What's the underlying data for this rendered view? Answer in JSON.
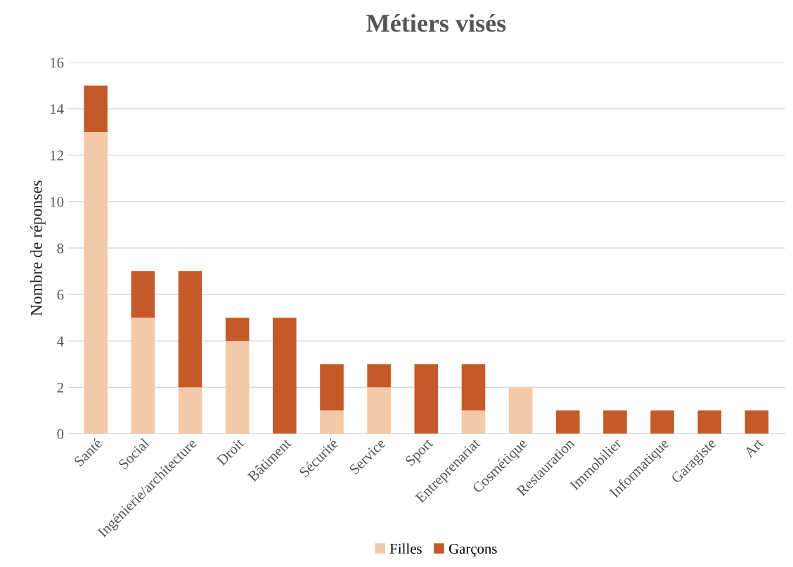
{
  "chart_data": {
    "type": "bar",
    "title": "Métiers visés",
    "ylabel": "Nombre de réponses",
    "categories": [
      "Santé",
      "Social",
      "Ingénierie/architecture",
      "Droit",
      "Bâtiment",
      "Sécurité",
      "Service",
      "Sport",
      "Entreprenariat",
      "Cosmétique",
      "Restauration",
      "Immobilier",
      "Informatique",
      "Garagiste",
      "Art"
    ],
    "series": [
      {
        "name": "Filles",
        "color": "#f4c9a8",
        "values": [
          13,
          5,
          2,
          4,
          0,
          1,
          2,
          0,
          1,
          2,
          0,
          0,
          0,
          0,
          0
        ]
      },
      {
        "name": "Garçons",
        "color": "#c55a28",
        "values": [
          2,
          2,
          5,
          1,
          5,
          2,
          1,
          3,
          2,
          0,
          1,
          1,
          1,
          1,
          1
        ]
      }
    ],
    "stacked": true,
    "ylim": [
      0,
      16
    ],
    "yticks": [
      0,
      2,
      4,
      6,
      8,
      10,
      12,
      14,
      16
    ],
    "grid": "y",
    "legend": "bottom"
  }
}
